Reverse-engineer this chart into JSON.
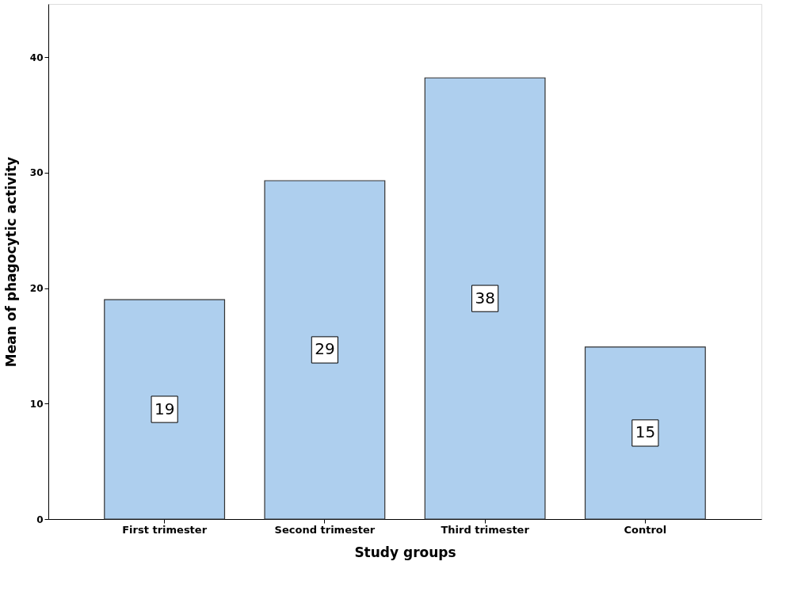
{
  "chart_data": {
    "type": "bar",
    "xlabel": "Study groups",
    "ylabel": "Mean of phagocytic activity",
    "categories": [
      "First trimester",
      "Second trimester",
      "Third trimester",
      "Control"
    ],
    "values": [
      19.0,
      29.3,
      38.2,
      14.9
    ],
    "value_labels": [
      "19",
      "29",
      "38",
      "15"
    ],
    "color": "#aecfee",
    "ylim": [
      0,
      44.6
    ],
    "yticks": [
      0,
      10,
      20,
      30,
      40
    ],
    "grid": false
  }
}
